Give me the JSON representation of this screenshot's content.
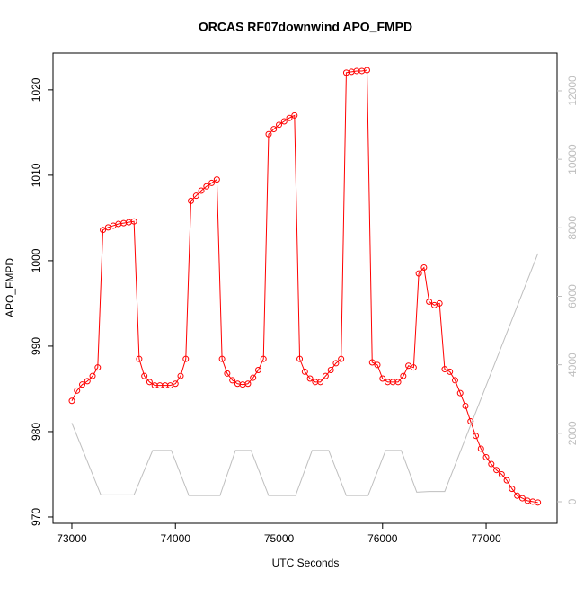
{
  "chart_data": {
    "type": "line",
    "title": "ORCAS RF07downwind APO_FMPD",
    "x_label": "UTC Seconds",
    "y_label": "APO_FMPD",
    "xlim": [
      72818,
      77685
    ],
    "xticks": [
      73000,
      74000,
      75000,
      76000,
      77000
    ],
    "ylim": [
      969.26,
      1024.3
    ],
    "yticks": [
      970,
      980,
      990,
      1000,
      1010,
      1020
    ],
    "y2lim": [
      -630,
      13102
    ],
    "y2ticks": [
      0,
      2000,
      4000,
      6000,
      8000,
      10000,
      12000
    ],
    "series": [
      {
        "color": "#ff0000",
        "marker": "circle",
        "x": [
          73000,
          73050,
          73100,
          73150,
          73200,
          73250,
          73300,
          73350,
          73400,
          73450,
          73500,
          73550,
          73600,
          73650,
          73700,
          73750,
          73800,
          73850,
          73900,
          73950,
          74000,
          74050,
          74100,
          74150,
          74200,
          74250,
          74300,
          74350,
          74400,
          74450,
          74500,
          74550,
          74600,
          74650,
          74700,
          74750,
          74800,
          74850,
          74900,
          74950,
          75000,
          75050,
          75100,
          75150,
          75200,
          75250,
          75300,
          75350,
          75400,
          75450,
          75500,
          75550,
          75600,
          75650,
          75700,
          75750,
          75800,
          75850,
          75900,
          75950,
          76000,
          76050,
          76100,
          76150,
          76200,
          76250,
          76300,
          76350,
          76400,
          76450,
          76500,
          76550,
          76600,
          76650,
          76700,
          76750,
          76800,
          76850,
          76900,
          76950,
          77000,
          77050,
          77100,
          77150,
          77200,
          77250,
          77300,
          77350,
          77400,
          77450,
          77500
        ],
        "values": [
          983.6,
          984.8,
          985.5,
          985.9,
          986.5,
          987.5,
          1003.6,
          1003.9,
          1004.1,
          1004.3,
          1004.4,
          1004.5,
          1004.6,
          988.5,
          986.5,
          985.8,
          985.4,
          985.4,
          985.4,
          985.4,
          985.6,
          986.5,
          988.5,
          1007,
          1007.6,
          1008.2,
          1008.7,
          1009.1,
          1009.5,
          988.5,
          986.8,
          986,
          985.6,
          985.5,
          985.6,
          986.3,
          987.2,
          988.5,
          1014.8,
          1015.4,
          1015.9,
          1016.3,
          1016.7,
          1017,
          988.5,
          987,
          986.2,
          985.8,
          985.8,
          986.5,
          987.2,
          988,
          988.5,
          1022,
          1022.1,
          1022.2,
          1022.2,
          1022.3,
          988.1,
          987.8,
          986.2,
          985.8,
          985.8,
          985.8,
          986.5,
          987.7,
          987.5,
          998.5,
          999.2,
          995.2,
          994.8,
          995,
          987.3,
          987,
          986,
          984.5,
          983,
          981.2,
          979.5,
          978,
          977,
          976.2,
          975.5,
          975,
          974.3,
          973.3,
          972.5,
          972.2,
          971.9,
          971.8,
          971.7
        ]
      },
      {
        "color": "#bebebe",
        "axis": "y2",
        "x": [
          73000,
          73280,
          73600,
          73780,
          73960,
          74130,
          74430,
          74580,
          74730,
          74900,
          75160,
          75320,
          75480,
          75650,
          75860,
          76030,
          76180,
          76330,
          76450,
          76600,
          77500
        ],
        "values": [
          2300,
          200,
          200,
          1500,
          1500,
          180,
          180,
          1500,
          1500,
          180,
          180,
          1500,
          1500,
          180,
          180,
          1500,
          1500,
          280,
          300,
          300,
          7250
        ]
      }
    ]
  }
}
